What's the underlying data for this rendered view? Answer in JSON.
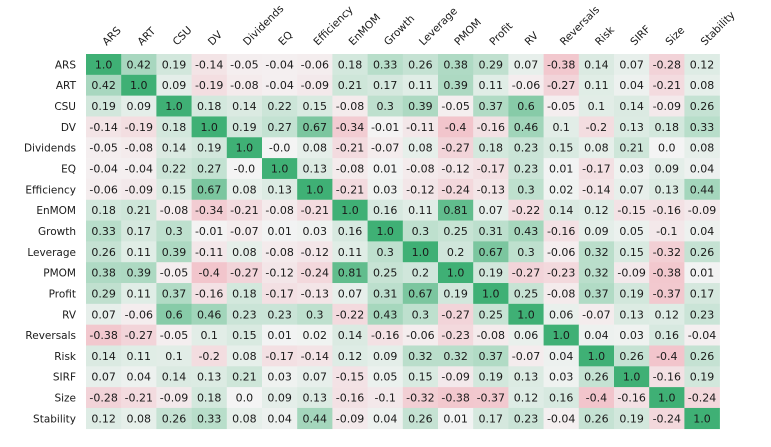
{
  "chart_data": {
    "type": "heatmap",
    "title": "",
    "xlabel": "",
    "ylabel": "",
    "legend": "none",
    "grid": false,
    "color_scale": {
      "negative": "#ee7f90",
      "neutral": "#f4f4f4",
      "positive": "#3fb075",
      "range": [
        -1,
        1
      ]
    },
    "row_labels": [
      "ARS",
      "ART",
      "CSU",
      "DV",
      "Dividends",
      "EQ",
      "Efficiency",
      "EnMOM",
      "Growth",
      "Leverage",
      "PMOM",
      "Profit",
      "RV",
      "Reversals",
      "Risk",
      "SIRF",
      "Size",
      "Stability"
    ],
    "col_labels": [
      "ARS",
      "ART",
      "CSU",
      "DV",
      "Dividends",
      "EQ",
      "Efficiency",
      "EnMOM",
      "Growth",
      "Leverage",
      "PMOM",
      "Profit",
      "RV",
      "Reversals",
      "Risk",
      "SIRF",
      "Size",
      "Stability"
    ],
    "values": [
      [
        "1.0",
        "0.42",
        "0.19",
        "-0.14",
        "-0.05",
        "-0.04",
        "-0.06",
        "0.18",
        "0.33",
        "0.26",
        "0.38",
        "0.29",
        "0.07",
        "-0.38",
        "0.14",
        "0.07",
        "-0.28",
        "0.12"
      ],
      [
        "0.42",
        "1.0",
        "0.09",
        "-0.19",
        "-0.08",
        "-0.04",
        "-0.09",
        "0.21",
        "0.17",
        "0.11",
        "0.39",
        "0.11",
        "-0.06",
        "-0.27",
        "0.11",
        "0.04",
        "-0.21",
        "0.08"
      ],
      [
        "0.19",
        "0.09",
        "1.0",
        "0.18",
        "0.14",
        "0.22",
        "0.15",
        "-0.08",
        "0.3",
        "0.39",
        "-0.05",
        "0.37",
        "0.6",
        "-0.05",
        "0.1",
        "0.14",
        "-0.09",
        "0.26"
      ],
      [
        "-0.14",
        "-0.19",
        "0.18",
        "1.0",
        "0.19",
        "0.27",
        "0.67",
        "-0.34",
        "-0.01",
        "-0.11",
        "-0.4",
        "-0.16",
        "0.46",
        "0.1",
        "-0.2",
        "0.13",
        "0.18",
        "0.33"
      ],
      [
        "-0.05",
        "-0.08",
        "0.14",
        "0.19",
        "1.0",
        "-0.0",
        "0.08",
        "-0.21",
        "-0.07",
        "0.08",
        "-0.27",
        "0.18",
        "0.23",
        "0.15",
        "0.08",
        "0.21",
        "0.0",
        "0.08"
      ],
      [
        "-0.04",
        "-0.04",
        "0.22",
        "0.27",
        "-0.0",
        "1.0",
        "0.13",
        "-0.08",
        "0.01",
        "-0.08",
        "-0.12",
        "-0.17",
        "0.23",
        "0.01",
        "-0.17",
        "0.03",
        "0.09",
        "0.04"
      ],
      [
        "-0.06",
        "-0.09",
        "0.15",
        "0.67",
        "0.08",
        "0.13",
        "1.0",
        "-0.21",
        "0.03",
        "-0.12",
        "-0.24",
        "-0.13",
        "0.3",
        "0.02",
        "-0.14",
        "0.07",
        "0.13",
        "0.44"
      ],
      [
        "0.18",
        "0.21",
        "-0.08",
        "-0.34",
        "-0.21",
        "-0.08",
        "-0.21",
        "1.0",
        "0.16",
        "0.11",
        "0.81",
        "0.07",
        "-0.22",
        "0.14",
        "0.12",
        "-0.15",
        "-0.16",
        "-0.09"
      ],
      [
        "0.33",
        "0.17",
        "0.3",
        "-0.01",
        "-0.07",
        "0.01",
        "0.03",
        "0.16",
        "1.0",
        "0.3",
        "0.25",
        "0.31",
        "0.43",
        "-0.16",
        "0.09",
        "0.05",
        "-0.1",
        "0.04"
      ],
      [
        "0.26",
        "0.11",
        "0.39",
        "-0.11",
        "0.08",
        "-0.08",
        "-0.12",
        "0.11",
        "0.3",
        "1.0",
        "0.2",
        "0.67",
        "0.3",
        "-0.06",
        "0.32",
        "0.15",
        "-0.32",
        "0.26"
      ],
      [
        "0.38",
        "0.39",
        "-0.05",
        "-0.4",
        "-0.27",
        "-0.12",
        "-0.24",
        "0.81",
        "0.25",
        "0.2",
        "1.0",
        "0.19",
        "-0.27",
        "-0.23",
        "0.32",
        "-0.09",
        "-0.38",
        "0.01"
      ],
      [
        "0.29",
        "0.11",
        "0.37",
        "-0.16",
        "0.18",
        "-0.17",
        "-0.13",
        "0.07",
        "0.31",
        "0.67",
        "0.19",
        "1.0",
        "0.25",
        "-0.08",
        "0.37",
        "0.19",
        "-0.37",
        "0.17"
      ],
      [
        "0.07",
        "-0.06",
        "0.6",
        "0.46",
        "0.23",
        "0.23",
        "0.3",
        "-0.22",
        "0.43",
        "0.3",
        "-0.27",
        "0.25",
        "1.0",
        "0.06",
        "-0.07",
        "0.13",
        "0.12",
        "0.23"
      ],
      [
        "-0.38",
        "-0.27",
        "-0.05",
        "0.1",
        "0.15",
        "0.01",
        "0.02",
        "0.14",
        "-0.16",
        "-0.06",
        "-0.23",
        "-0.08",
        "0.06",
        "1.0",
        "0.04",
        "0.03",
        "0.16",
        "-0.04"
      ],
      [
        "0.14",
        "0.11",
        "0.1",
        "-0.2",
        "0.08",
        "-0.17",
        "-0.14",
        "0.12",
        "0.09",
        "0.32",
        "0.32",
        "0.37",
        "-0.07",
        "0.04",
        "1.0",
        "0.26",
        "-0.4",
        "0.26"
      ],
      [
        "0.07",
        "0.04",
        "0.14",
        "0.13",
        "0.21",
        "0.03",
        "0.07",
        "-0.15",
        "0.05",
        "0.15",
        "-0.09",
        "0.19",
        "0.13",
        "0.03",
        "0.26",
        "1.0",
        "-0.16",
        "0.19"
      ],
      [
        "-0.28",
        "-0.21",
        "-0.09",
        "0.18",
        "0.0",
        "0.09",
        "0.13",
        "-0.16",
        "-0.1",
        "-0.32",
        "-0.38",
        "-0.37",
        "0.12",
        "0.16",
        "-0.4",
        "-0.16",
        "1.0",
        "-0.24"
      ],
      [
        "0.12",
        "0.08",
        "0.26",
        "0.33",
        "0.08",
        "0.04",
        "0.44",
        "-0.09",
        "0.04",
        "0.26",
        "0.01",
        "0.17",
        "0.23",
        "-0.04",
        "0.26",
        "0.19",
        "-0.24",
        "1.0"
      ]
    ]
  }
}
